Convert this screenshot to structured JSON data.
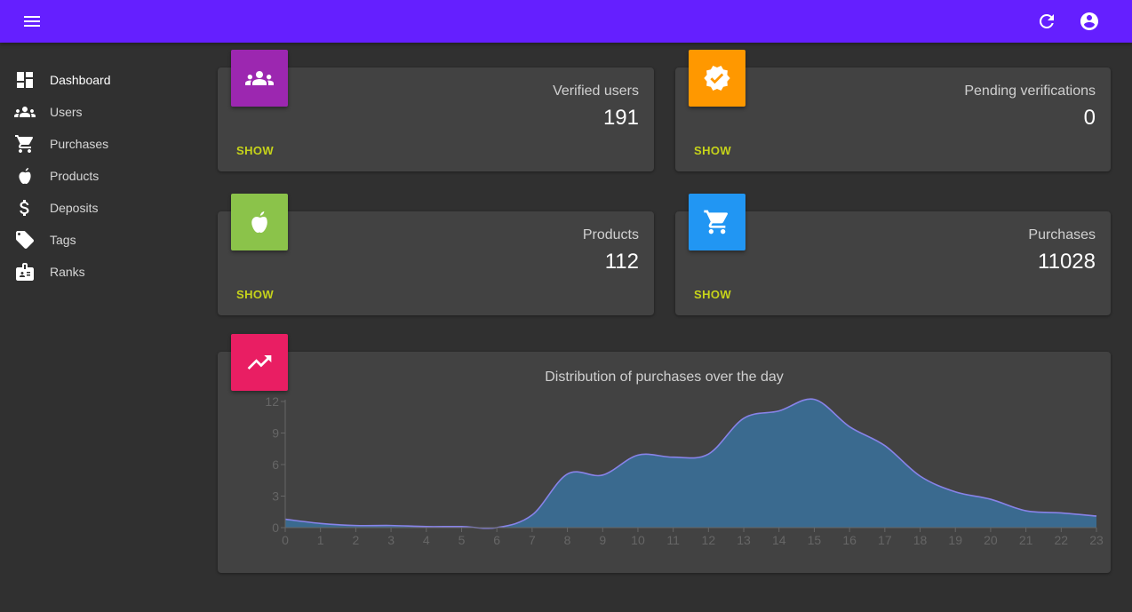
{
  "appbar": {
    "color": "#651fff",
    "menu_icon": "menu-icon",
    "refresh_icon": "refresh-icon",
    "account_icon": "account-circle-icon"
  },
  "sidebar": {
    "items": [
      {
        "label": "Dashboard",
        "icon": "dashboard-icon",
        "active": true
      },
      {
        "label": "Users",
        "icon": "people-icon",
        "active": false
      },
      {
        "label": "Purchases",
        "icon": "cart-icon",
        "active": false
      },
      {
        "label": "Products",
        "icon": "apple-icon",
        "active": false
      },
      {
        "label": "Deposits",
        "icon": "dollar-icon",
        "active": false
      },
      {
        "label": "Tags",
        "icon": "tag-icon",
        "active": false
      },
      {
        "label": "Ranks",
        "icon": "badge-card-icon",
        "active": false
      }
    ]
  },
  "stats": [
    {
      "title": "Verified users",
      "value": "191",
      "action": "SHOW",
      "icon": "people-icon",
      "color": "#9c27b0"
    },
    {
      "title": "Pending verifications",
      "value": "0",
      "action": "SHOW",
      "icon": "verified-icon",
      "color": "#ff9800"
    },
    {
      "title": "Products",
      "value": "112",
      "action": "SHOW",
      "icon": "apple-icon",
      "color": "#8bc34a"
    },
    {
      "title": "Purchases",
      "value": "11028",
      "action": "SHOW",
      "icon": "cart-icon",
      "color": "#2196f3"
    }
  ],
  "chart_card": {
    "icon": "trending-up-icon",
    "color": "#e91e63"
  },
  "chart_data": {
    "type": "area",
    "title": "Distribution of purchases over the day",
    "xlabel": "",
    "ylabel": "",
    "x": [
      0,
      1,
      2,
      3,
      4,
      5,
      6,
      7,
      8,
      9,
      10,
      11,
      12,
      13,
      14,
      15,
      16,
      17,
      18,
      19,
      20,
      21,
      22,
      23
    ],
    "series": [
      {
        "values": [
          0.8,
          0.4,
          0.2,
          0.2,
          0.1,
          0.1,
          0.0,
          1.2,
          5.1,
          5.0,
          6.9,
          6.7,
          7.0,
          10.4,
          11.1,
          12.2,
          9.6,
          7.8,
          4.9,
          3.4,
          2.7,
          1.6,
          1.4,
          1.1
        ]
      }
    ],
    "ylim": [
      0,
      12
    ],
    "yticks": [
      0,
      3,
      6,
      9,
      12
    ],
    "line_color": "#8883e8",
    "fill_color": "#3a6a8f",
    "grid": false
  }
}
